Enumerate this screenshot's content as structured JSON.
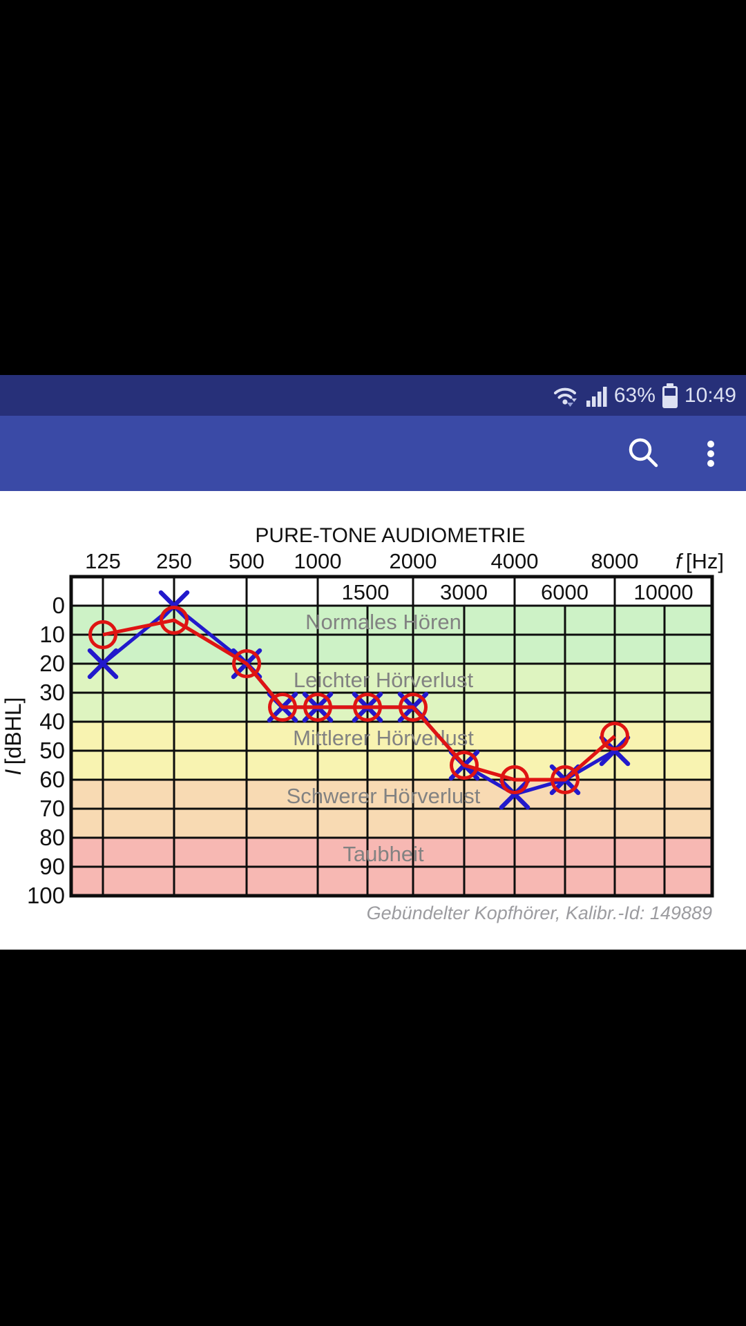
{
  "status_bar": {
    "battery_percent": "63%",
    "time": "10:49"
  },
  "app_bar": {
    "icons": [
      "search-icon",
      "overflow-menu-icon"
    ]
  },
  "colors": {
    "status_bar_bg": "#273079",
    "app_bar_bg": "#3a4aa6",
    "status_fg": "#dde1f2",
    "band_label_gray": "#828282",
    "caption_gray": "#9c9ca0"
  },
  "chart_data": {
    "type": "line",
    "title": "PURE-TONE AUDIOMETRIE",
    "x_axis_label": "f [Hz]",
    "y_axis_label": "I [dBHL]",
    "top_tick_labels": [
      "125",
      "250",
      "500",
      "1000",
      "2000",
      "4000",
      "8000"
    ],
    "inner_tick_labels": [
      "1500",
      "3000",
      "6000",
      "10000"
    ],
    "y_ticks": [
      "0",
      "10",
      "20",
      "30",
      "40",
      "50",
      "60",
      "70",
      "80",
      "90",
      "100"
    ],
    "ylim": [
      0,
      100
    ],
    "grid": true,
    "frequencies": [
      125,
      250,
      500,
      750,
      1000,
      1500,
      2000,
      3000,
      4000,
      6000,
      8000
    ],
    "series": [
      {
        "name": "right-ear-red-circles",
        "marker": "circle",
        "color": "#df1413",
        "values": [
          10,
          5,
          20,
          35,
          35,
          35,
          35,
          55,
          60,
          60,
          45
        ]
      },
      {
        "name": "left-ear-blue-crosses",
        "marker": "x",
        "color": "#2219cc",
        "values": [
          20,
          0,
          20,
          35,
          35,
          35,
          35,
          55,
          65,
          60,
          50
        ]
      }
    ],
    "bands": [
      {
        "label": "Normales Hören",
        "from": 0,
        "to": 20,
        "color": "#cdf2c6"
      },
      {
        "label": "Leichter Hörverlust",
        "from": 20,
        "to": 40,
        "color": "#def4c0"
      },
      {
        "label": "Mittlerer Hörverlust",
        "from": 40,
        "to": 60,
        "color": "#f8f3b1"
      },
      {
        "label": "Schwerer Hörverlust",
        "from": 60,
        "to": 80,
        "color": "#f8dab3"
      },
      {
        "label": "Taubheit",
        "from": 80,
        "to": 100,
        "color": "#f7b8b3"
      }
    ],
    "caption": "Gebündelter Kopfhörer, Kalibr.-Id: 149889"
  }
}
